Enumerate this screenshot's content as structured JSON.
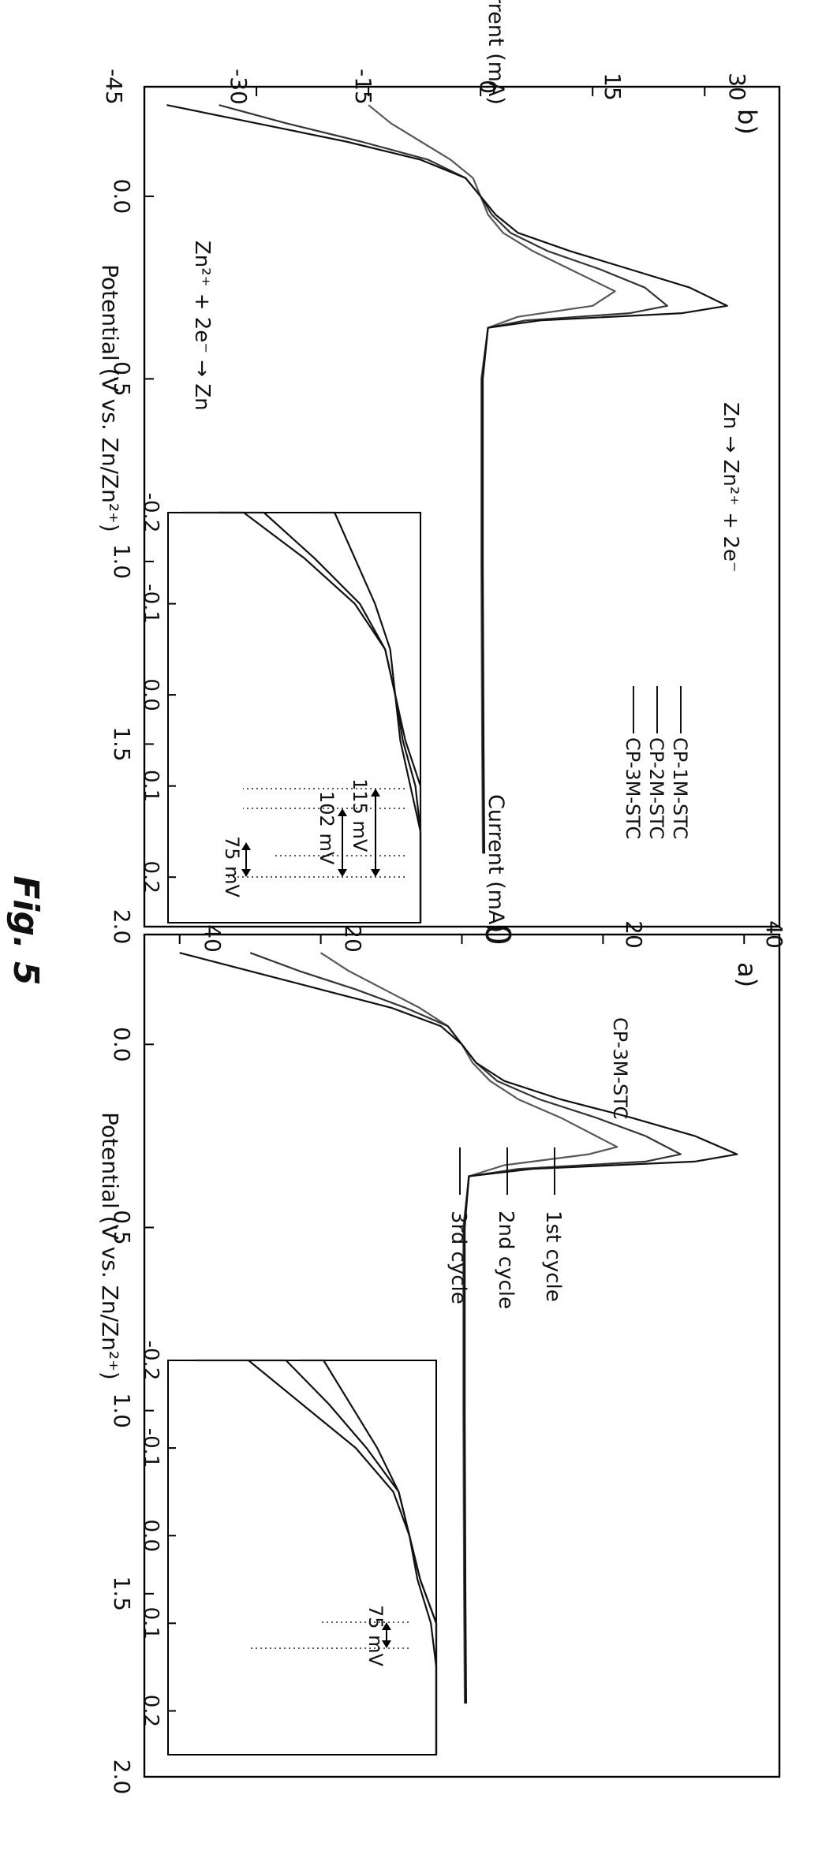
{
  "figure_label": "Fig. 5",
  "chart_data": [
    {
      "panel": "a)",
      "type": "line",
      "title": "CP-3M-STC",
      "xlabel": "Potential (V vs. Zn/Zn²⁺)",
      "ylabel": "Current (mA)",
      "xlim": [
        -0.3,
        2.0
      ],
      "ylim": [
        -45,
        45
      ],
      "xticks": [
        "0.0",
        "0.5",
        "1.0",
        "1.5",
        "2.0"
      ],
      "yticks": [
        "-40",
        "-20",
        "0",
        "20",
        "40"
      ],
      "legend": [
        "1st cycle",
        "2nd cycle",
        "3rd cycle"
      ],
      "legend_position": "top-center",
      "series": [
        {
          "name": "1st cycle",
          "peak_anodic": {
            "x": 0.3,
            "y": 39
          },
          "min_cathodic": {
            "x": -0.25,
            "y": -40
          },
          "x": [
            -0.25,
            -0.2,
            -0.15,
            -0.1,
            -0.05,
            0.0,
            0.05,
            0.1,
            0.15,
            0.2,
            0.25,
            0.3,
            0.32,
            0.34,
            0.36,
            0.5,
            1.0,
            1.5,
            1.8
          ],
          "y": [
            -40,
            -30,
            -20,
            -10,
            -3,
            0,
            2,
            6,
            14,
            24,
            33,
            39,
            33,
            10,
            1,
            0.4,
            0.4,
            0.5,
            0.6
          ]
        },
        {
          "name": "2nd cycle",
          "peak_anodic": {
            "x": 0.3,
            "y": 31
          },
          "min_cathodic": {
            "x": -0.25,
            "y": -30
          },
          "x": [
            -0.25,
            -0.2,
            -0.15,
            -0.1,
            -0.05,
            0.0,
            0.05,
            0.1,
            0.15,
            0.2,
            0.25,
            0.3,
            0.32,
            0.34,
            0.36,
            0.5,
            1.0,
            1.5,
            1.8
          ],
          "y": [
            -30,
            -23,
            -15,
            -8,
            -2,
            0,
            2,
            5,
            11,
            19,
            26,
            31,
            26,
            8,
            1,
            0.3,
            0.3,
            0.4,
            0.5
          ]
        },
        {
          "name": "3rd cycle",
          "peak_anodic": {
            "x": 0.28,
            "y": 22
          },
          "min_cathodic": {
            "x": -0.25,
            "y": -20
          },
          "x": [
            -0.25,
            -0.2,
            -0.15,
            -0.1,
            -0.05,
            0.0,
            0.05,
            0.1,
            0.15,
            0.2,
            0.25,
            0.28,
            0.3,
            0.33,
            0.36,
            0.5,
            1.0,
            1.5,
            1.8
          ],
          "y": [
            -20,
            -16,
            -11,
            -6,
            -2,
            0,
            1.5,
            4,
            8,
            14,
            19,
            22,
            18,
            6,
            1,
            0.2,
            0.2,
            0.3,
            0.4
          ]
        }
      ],
      "inset": {
        "xlim": [
          -0.2,
          0.25
        ],
        "xticks": [
          "-0.2",
          "-0.1",
          "0.0",
          "0.1",
          "0.2"
        ],
        "annotation": "75 mV",
        "annotation_range": [
          -0.065,
          0.01
        ]
      }
    },
    {
      "panel": "b)",
      "type": "line",
      "xlabel": "Potential (V vs. Zn/Zn²⁺)",
      "ylabel": "Current (mA)",
      "xlim": [
        -0.3,
        2.0
      ],
      "ylim": [
        -45,
        40
      ],
      "xticks": [
        "0.0",
        "0.5",
        "1.0",
        "1.5",
        "2.0"
      ],
      "yticks": [
        "30",
        "15",
        "0",
        "-15",
        "-30",
        "-45"
      ],
      "legend": [
        "CP-1M-STC",
        "CP-2M-STC",
        "CP-3M-STC"
      ],
      "legend_position": "top-right",
      "annotations": [
        "Zn → Zn²⁺ + 2e⁻",
        "Zn²⁺ + 2e⁻ → Zn"
      ],
      "series": [
        {
          "name": "CP-1M-STC",
          "peak_anodic": {
            "x": 0.3,
            "y": 33
          },
          "min_cathodic": {
            "x": -0.25,
            "y": -42
          },
          "x": [
            -0.25,
            -0.2,
            -0.15,
            -0.1,
            -0.05,
            0.0,
            0.05,
            0.1,
            0.15,
            0.2,
            0.25,
            0.3,
            0.32,
            0.34,
            0.36,
            0.5,
            1.0,
            1.5,
            1.8
          ],
          "y": [
            -42,
            -30,
            -18,
            -8,
            -2,
            0,
            2,
            5,
            12,
            20,
            28,
            33,
            27,
            8,
            1,
            0.3,
            0.3,
            0.4,
            0.5
          ]
        },
        {
          "name": "CP-2M-STC",
          "peak_anodic": {
            "x": 0.3,
            "y": 25
          },
          "min_cathodic": {
            "x": -0.25,
            "y": -35
          },
          "x": [
            -0.25,
            -0.2,
            -0.15,
            -0.1,
            -0.05,
            0.0,
            0.05,
            0.1,
            0.15,
            0.2,
            0.25,
            0.3,
            0.32,
            0.34,
            0.36,
            0.5,
            1.0,
            1.5,
            1.8
          ],
          "y": [
            -35,
            -26,
            -16,
            -7,
            -2,
            0,
            1.5,
            4,
            9,
            16,
            22,
            25,
            20,
            6,
            1,
            0.2,
            0.2,
            0.3,
            0.4
          ]
        },
        {
          "name": "CP-3M-STC",
          "peak_anodic": {
            "x": 0.26,
            "y": 18
          },
          "min_cathodic": {
            "x": -0.25,
            "y": -15
          },
          "x": [
            -0.25,
            -0.2,
            -0.15,
            -0.1,
            -0.05,
            0.0,
            0.05,
            0.1,
            0.15,
            0.2,
            0.26,
            0.3,
            0.33,
            0.36,
            0.5,
            1.0,
            1.5,
            1.8
          ],
          "y": [
            -15,
            -12,
            -8,
            -4,
            -1,
            0,
            1,
            3,
            7,
            12,
            18,
            15,
            5,
            1,
            0.1,
            0.1,
            0.2,
            0.3
          ]
        }
      ],
      "inset": {
        "xlim": [
          -0.2,
          0.25
        ],
        "xticks": [
          "-0.2",
          "-0.1",
          "0.0",
          "0.1",
          "0.2"
        ],
        "annotations": [
          {
            "text": "115 mV",
            "range": [
              -0.12,
              -0.005
            ]
          },
          {
            "text": "102 mV",
            "range": [
              -0.1,
              0.002
            ]
          },
          {
            "text": "75 mV",
            "range": [
              -0.055,
              0.02
            ]
          }
        ]
      }
    }
  ]
}
